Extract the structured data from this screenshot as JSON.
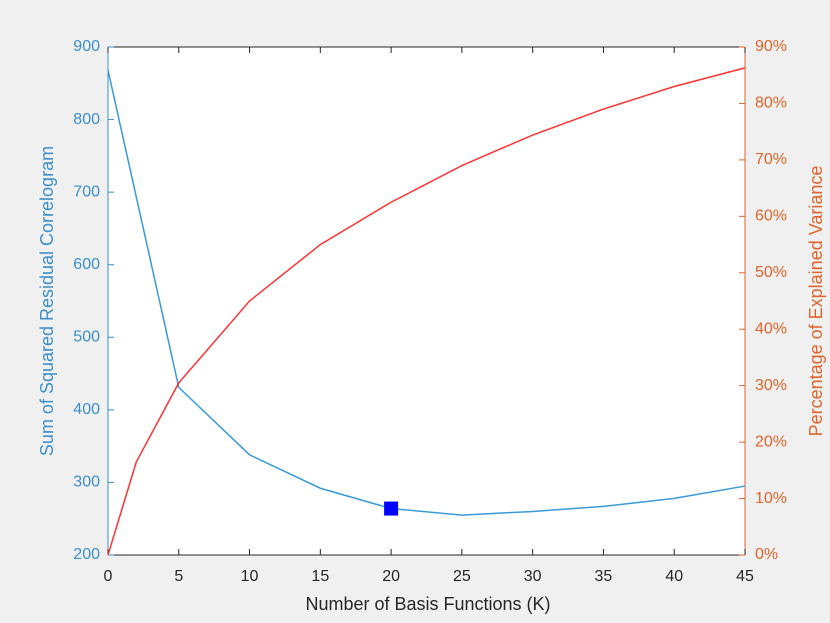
{
  "chart_data": {
    "type": "line",
    "x_label": "Number of Basis Functions (K)",
    "y_label": "Sum of Squared Residual Correlogram",
    "y2_label": "Percentage of Explained Variance",
    "xlim": [
      0,
      45
    ],
    "xticks": [
      0,
      5,
      10,
      15,
      20,
      25,
      30,
      35,
      40,
      45
    ],
    "ylim": [
      200,
      900
    ],
    "yticks": [
      200,
      300,
      400,
      500,
      600,
      700,
      800,
      900
    ],
    "y2lim": [
      0,
      90
    ],
    "y2ticks": [
      {
        "value": 0,
        "label": "0%"
      },
      {
        "value": 10,
        "label": "10%"
      },
      {
        "value": 20,
        "label": "20%"
      },
      {
        "value": 30,
        "label": "30%"
      },
      {
        "value": 40,
        "label": "40%"
      },
      {
        "value": 50,
        "label": "50%"
      },
      {
        "value": 60,
        "label": "60%"
      },
      {
        "value": 70,
        "label": "70%"
      },
      {
        "value": 80,
        "label": "80%"
      },
      {
        "value": 90,
        "label": "90%"
      }
    ],
    "y_color": "#3a8fcc",
    "y2_color": "#e0642a",
    "series": [
      {
        "color": "#3a9ad9",
        "x": [
          0,
          5,
          10,
          15,
          20,
          25,
          30,
          35,
          40,
          45
        ],
        "values": [
          868,
          431,
          338,
          292,
          264,
          255,
          260,
          267,
          278,
          295
        ]
      },
      {
        "color": "#ff3333",
        "axis": "y2",
        "x": [
          0,
          2,
          5,
          10,
          15,
          20,
          25,
          30,
          35,
          40,
          45
        ],
        "values": [
          0,
          16.5,
          30.5,
          45,
          55,
          62.5,
          69,
          74.4,
          79,
          83,
          86.3
        ]
      }
    ],
    "highlight": {
      "x": 20,
      "y": 264,
      "color": "#0000ff"
    }
  }
}
